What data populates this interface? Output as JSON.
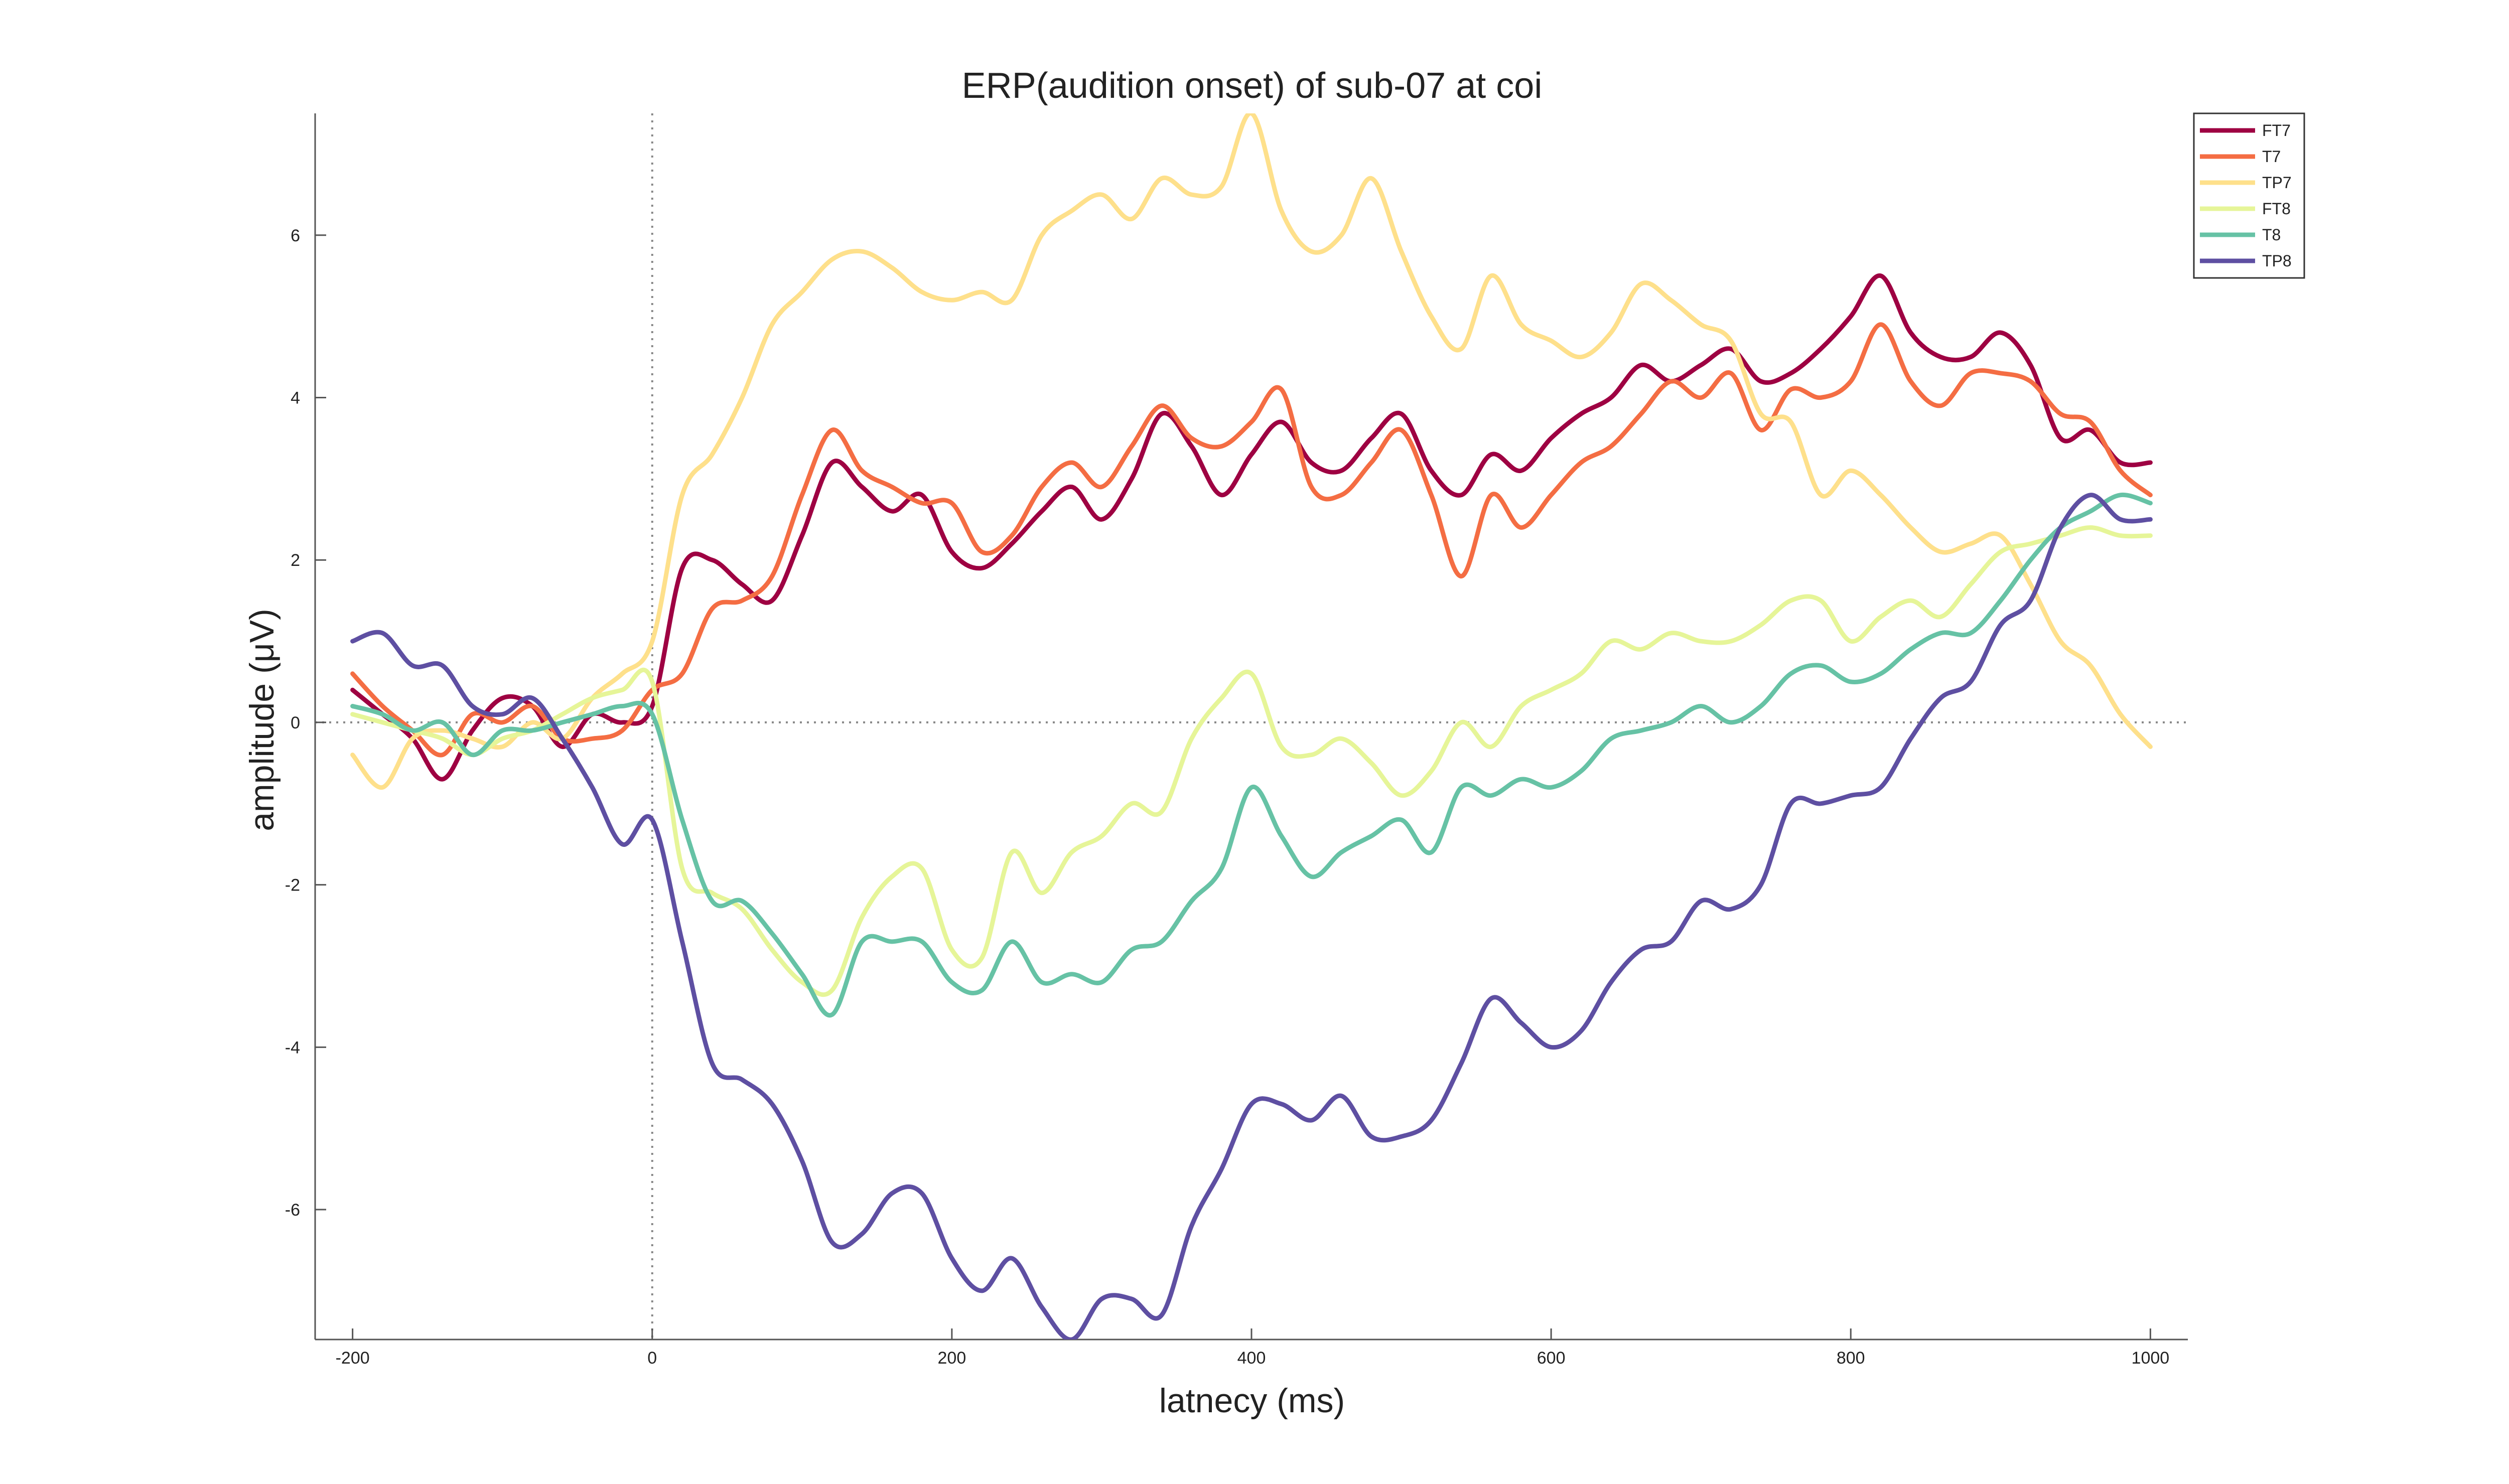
{
  "chart_data": {
    "type": "line",
    "title": "ERP(audition onset) of sub-07 at coi",
    "xlabel": "latnecy (ms)",
    "ylabel": "amplitude (μV)",
    "xlim": [
      -225,
      1025
    ],
    "ylim": [
      -7.6,
      7.5
    ],
    "x_ticks": [
      -200,
      0,
      200,
      400,
      600,
      800,
      1000
    ],
    "x_tick_labels": [
      "-200",
      "0",
      "200",
      "400",
      "600",
      "800",
      "1000"
    ],
    "y_ticks": [
      -6,
      -4,
      -2,
      0,
      2,
      4,
      6
    ],
    "y_tick_labels": [
      "-6",
      "-4",
      "-2",
      "0",
      "2",
      "4",
      "6"
    ],
    "zero_lines": {
      "x": 0,
      "y": 0
    },
    "legend_position": "top-right",
    "grid": false,
    "x": [
      -200,
      -180,
      -160,
      -140,
      -120,
      -100,
      -80,
      -60,
      -40,
      -20,
      0,
      20,
      40,
      60,
      80,
      100,
      120,
      140,
      160,
      180,
      200,
      220,
      240,
      260,
      280,
      300,
      320,
      340,
      360,
      380,
      400,
      420,
      440,
      460,
      480,
      500,
      520,
      540,
      560,
      580,
      600,
      620,
      640,
      660,
      680,
      700,
      720,
      740,
      760,
      780,
      800,
      820,
      840,
      860,
      880,
      900,
      920,
      940,
      960,
      980,
      1000
    ],
    "series": [
      {
        "name": "FT7",
        "color": "#9e0142",
        "values": [
          0.4,
          0.1,
          -0.2,
          -0.7,
          -0.1,
          0.3,
          0.2,
          -0.3,
          0.1,
          0.0,
          0.2,
          1.9,
          2.0,
          1.7,
          1.5,
          2.3,
          3.2,
          2.9,
          2.6,
          2.8,
          2.1,
          1.9,
          2.2,
          2.6,
          2.9,
          2.5,
          3.0,
          3.8,
          3.4,
          2.8,
          3.3,
          3.7,
          3.2,
          3.1,
          3.5,
          3.8,
          3.1,
          2.8,
          3.3,
          3.1,
          3.5,
          3.8,
          4.0,
          4.4,
          4.2,
          4.4,
          4.6,
          4.2,
          4.3,
          4.6,
          5.0,
          5.5,
          4.8,
          4.5,
          4.5,
          4.8,
          4.4,
          3.5,
          3.6,
          3.2,
          3.2
        ]
      },
      {
        "name": "T7",
        "color": "#f46d43",
        "values": [
          0.6,
          0.2,
          -0.1,
          -0.4,
          0.1,
          0.0,
          0.2,
          -0.2,
          -0.2,
          -0.1,
          0.4,
          0.6,
          1.4,
          1.5,
          1.8,
          2.8,
          3.6,
          3.1,
          2.9,
          2.7,
          2.7,
          2.1,
          2.3,
          2.9,
          3.2,
          2.9,
          3.4,
          3.9,
          3.5,
          3.4,
          3.7,
          4.1,
          2.9,
          2.8,
          3.2,
          3.6,
          2.8,
          1.8,
          2.8,
          2.4,
          2.8,
          3.2,
          3.4,
          3.8,
          4.2,
          4.0,
          4.3,
          3.6,
          4.1,
          4.0,
          4.2,
          4.9,
          4.2,
          3.9,
          4.3,
          4.3,
          4.2,
          3.8,
          3.7,
          3.1,
          2.8
        ]
      },
      {
        "name": "TP7",
        "color": "#fee08b",
        "values": [
          -0.4,
          -0.8,
          -0.2,
          -0.1,
          -0.2,
          -0.3,
          0.0,
          -0.2,
          0.3,
          0.6,
          1.0,
          2.8,
          3.3,
          4.0,
          4.9,
          5.3,
          5.7,
          5.8,
          5.6,
          5.3,
          5.2,
          5.3,
          5.2,
          6.0,
          6.3,
          6.5,
          6.2,
          6.7,
          6.5,
          6.6,
          7.5,
          6.3,
          5.8,
          6.0,
          6.7,
          5.8,
          5.0,
          4.6,
          5.5,
          4.9,
          4.7,
          4.5,
          4.8,
          5.4,
          5.2,
          4.9,
          4.7,
          3.8,
          3.7,
          2.8,
          3.1,
          2.8,
          2.4,
          2.1,
          2.2,
          2.3,
          1.7,
          1.0,
          0.7,
          0.1,
          -0.3
        ]
      },
      {
        "name": "FT8",
        "color": "#e6f598",
        "values": [
          0.1,
          0.0,
          -0.1,
          -0.2,
          -0.4,
          -0.2,
          -0.1,
          0.1,
          0.3,
          0.4,
          0.5,
          -1.8,
          -2.1,
          -2.3,
          -2.8,
          -3.2,
          -3.3,
          -2.4,
          -1.9,
          -1.8,
          -2.8,
          -2.9,
          -1.6,
          -2.1,
          -1.6,
          -1.4,
          -1.0,
          -1.1,
          -0.2,
          0.3,
          0.6,
          -0.3,
          -0.4,
          -0.2,
          -0.5,
          -0.9,
          -0.6,
          0.0,
          -0.3,
          0.2,
          0.4,
          0.6,
          1.0,
          0.9,
          1.1,
          1.0,
          1.0,
          1.2,
          1.5,
          1.5,
          1.0,
          1.3,
          1.5,
          1.3,
          1.7,
          2.1,
          2.2,
          2.3,
          2.4,
          2.3,
          2.3
        ]
      },
      {
        "name": "T8",
        "color": "#66c2a5",
        "values": [
          0.2,
          0.1,
          -0.1,
          0.0,
          -0.4,
          -0.1,
          -0.1,
          0.0,
          0.1,
          0.2,
          0.1,
          -1.2,
          -2.2,
          -2.2,
          -2.6,
          -3.1,
          -3.6,
          -2.7,
          -2.7,
          -2.7,
          -3.2,
          -3.3,
          -2.7,
          -3.2,
          -3.1,
          -3.2,
          -2.8,
          -2.7,
          -2.2,
          -1.8,
          -0.8,
          -1.4,
          -1.9,
          -1.6,
          -1.4,
          -1.2,
          -1.6,
          -0.8,
          -0.9,
          -0.7,
          -0.8,
          -0.6,
          -0.2,
          -0.1,
          0.0,
          0.2,
          0.0,
          0.2,
          0.6,
          0.7,
          0.5,
          0.6,
          0.9,
          1.1,
          1.1,
          1.5,
          2.0,
          2.4,
          2.6,
          2.8,
          2.7
        ]
      },
      {
        "name": "TP8",
        "color": "#5e4fa2",
        "values": [
          1.0,
          1.1,
          0.7,
          0.7,
          0.2,
          0.1,
          0.3,
          -0.2,
          -0.8,
          -1.5,
          -1.2,
          -2.7,
          -4.2,
          -4.4,
          -4.7,
          -5.4,
          -6.4,
          -6.3,
          -5.8,
          -5.8,
          -6.6,
          -7.0,
          -6.6,
          -7.2,
          -7.6,
          -7.1,
          -7.1,
          -7.3,
          -6.2,
          -5.5,
          -4.7,
          -4.7,
          -4.9,
          -4.6,
          -5.1,
          -5.1,
          -4.9,
          -4.2,
          -3.4,
          -3.7,
          -4.0,
          -3.8,
          -3.2,
          -2.8,
          -2.7,
          -2.2,
          -2.3,
          -2.0,
          -1.0,
          -1.0,
          -0.9,
          -0.8,
          -0.2,
          0.3,
          0.5,
          1.2,
          1.5,
          2.4,
          2.8,
          2.5,
          2.5
        ]
      }
    ]
  }
}
